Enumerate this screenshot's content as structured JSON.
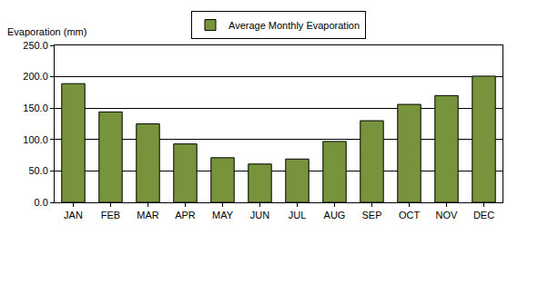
{
  "chart_data": {
    "type": "bar",
    "ylabel": "Evaporation (mm)",
    "categories": [
      "JAN",
      "FEB",
      "MAR",
      "APR",
      "MAY",
      "JUN",
      "JUL",
      "AUG",
      "SEP",
      "OCT",
      "NOV",
      "DEC"
    ],
    "series": [
      {
        "name": "Average Monthly Evaporation",
        "color": "#77933c",
        "values": [
          189,
          144,
          125,
          93,
          71,
          61,
          69,
          97,
          130,
          156,
          170,
          201
        ]
      }
    ],
    "ylim": [
      0,
      250
    ],
    "yticks": [
      {
        "value": 0,
        "label": "0.0"
      },
      {
        "value": 50,
        "label": "50.0"
      },
      {
        "value": 100,
        "label": "100.0"
      },
      {
        "value": 150,
        "label": "150.0"
      },
      {
        "value": 200,
        "label": "200.0"
      },
      {
        "value": 250,
        "label": "250.0"
      }
    ],
    "grid": true,
    "legend": "top"
  }
}
